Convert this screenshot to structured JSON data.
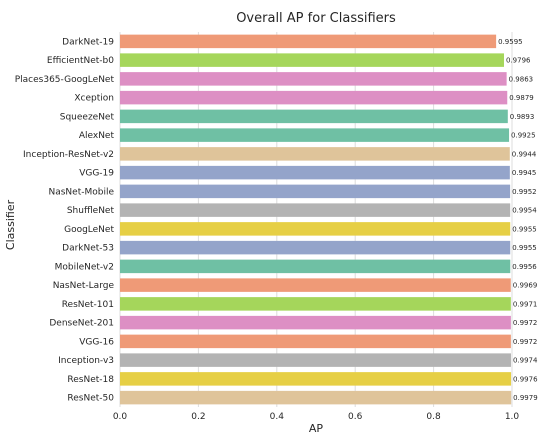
{
  "chart_data": {
    "type": "bar",
    "orientation": "horizontal",
    "title": "Overall AP for Classifiers",
    "xlabel": "AP",
    "ylabel": "Classifier",
    "xlim": [
      0.0,
      1.0
    ],
    "xticks": [
      "0.0",
      "0.2",
      "0.4",
      "0.6",
      "0.8",
      "1.0"
    ],
    "grid": "vertical",
    "categories": [
      "DarkNet-19",
      "EfficientNet-b0",
      "Places365-GoogLeNet",
      "Xception",
      "SqueezeNet",
      "AlexNet",
      "Inception-ResNet-v2",
      "VGG-19",
      "NasNet-Mobile",
      "ShuffleNet",
      "GoogLeNet",
      "DarkNet-53",
      "MobileNet-v2",
      "NasNet-Large",
      "ResNet-101",
      "DenseNet-201",
      "VGG-16",
      "Inception-v3",
      "ResNet-18",
      "ResNet-50"
    ],
    "values": [
      0.9595,
      0.9796,
      0.9863,
      0.9879,
      0.9893,
      0.9925,
      0.9944,
      0.9945,
      0.9952,
      0.9954,
      0.9955,
      0.9955,
      0.9956,
      0.9969,
      0.9971,
      0.9972,
      0.9972,
      0.9974,
      0.9976,
      0.9979
    ],
    "value_labels": [
      "0.9595",
      "0.9796",
      "0.9863",
      "0.9879",
      "0.9893",
      "0.9925",
      "0.9944",
      "0.9945",
      "0.9952",
      "0.9954",
      "0.9955",
      "0.9955",
      "0.9956",
      "0.9969",
      "0.9971",
      "0.9972",
      "0.9972",
      "0.9974",
      "0.9976",
      "0.9979"
    ],
    "colors": [
      "#ef9a77",
      "#a5d65b",
      "#dd8fc4",
      "#dd8fc4",
      "#6fc0a4",
      "#6fc0a4",
      "#dfc49a",
      "#94a4ca",
      "#94a4ca",
      "#b3b3b3",
      "#e6cf45",
      "#94a4ca",
      "#6fc0a4",
      "#ef9a77",
      "#a5d65b",
      "#dd8fc4",
      "#ef9a77",
      "#b3b3b3",
      "#e6cf45",
      "#dfc49a"
    ]
  }
}
